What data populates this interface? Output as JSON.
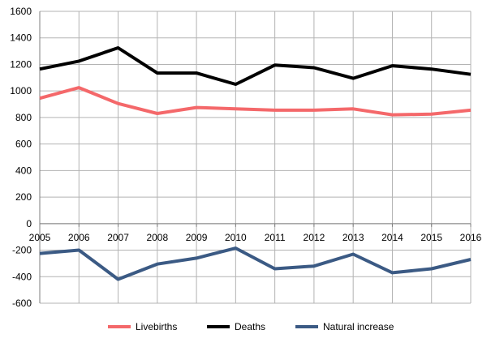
{
  "chart_data": {
    "type": "line",
    "title": "",
    "xlabel": "",
    "ylabel": "",
    "ylim": [
      -600,
      1600
    ],
    "yticks": [
      -600,
      -400,
      -200,
      0,
      200,
      400,
      600,
      800,
      1000,
      1200,
      1400,
      1600
    ],
    "x": [
      "2005",
      "2006",
      "2007",
      "2008",
      "2009",
      "2010",
      "2011",
      "2012",
      "2013",
      "2014",
      "2015",
      "2016"
    ],
    "grid": true,
    "legend_position": "bottom",
    "series": [
      {
        "name": "Livebirths",
        "color": "#f4686a",
        "values": [
          945,
          1025,
          905,
          830,
          875,
          865,
          855,
          855,
          865,
          820,
          825,
          855
        ]
      },
      {
        "name": "Deaths",
        "color": "#000000",
        "values": [
          1165,
          1225,
          1325,
          1135,
          1135,
          1050,
          1195,
          1175,
          1095,
          1190,
          1165,
          1125
        ]
      },
      {
        "name": "Natural increase",
        "color": "#3b5a84",
        "values": [
          -225,
          -200,
          -420,
          -305,
          -260,
          -185,
          -340,
          -320,
          -230,
          -370,
          -340,
          -270
        ]
      }
    ]
  }
}
